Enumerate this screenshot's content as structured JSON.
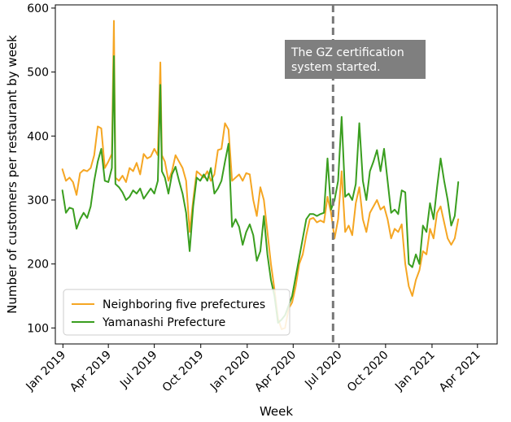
{
  "chart_data": {
    "type": "line",
    "xlabel": "Week",
    "ylabel": "Number of customers per restaurant by week",
    "ylim": [
      75,
      605
    ],
    "yticks": [
      100,
      200,
      300,
      400,
      500,
      600
    ],
    "xlim": [
      "2018-12-17",
      "2021-05-10"
    ],
    "xticks": [
      {
        "date": "2019-01-01",
        "label": "Jan 2019"
      },
      {
        "date": "2019-04-01",
        "label": "Apr 2019"
      },
      {
        "date": "2019-07-01",
        "label": "Jul 2019"
      },
      {
        "date": "2019-10-01",
        "label": "Oct 2019"
      },
      {
        "date": "2020-01-01",
        "label": "Jan 2020"
      },
      {
        "date": "2020-04-01",
        "label": "Apr 2020"
      },
      {
        "date": "2020-07-01",
        "label": "Jul 2020"
      },
      {
        "date": "2020-10-01",
        "label": "Oct 2020"
      },
      {
        "date": "2021-01-01",
        "label": "Jan 2021"
      },
      {
        "date": "2021-04-01",
        "label": "Apr 2021"
      }
    ],
    "grid": false,
    "legend_position": "lower-left",
    "series": [
      {
        "name": "Neighboring five prefectures",
        "color": "#f5a623",
        "points": [
          [
            "2018-12-31",
            348
          ],
          [
            "2019-01-07",
            330
          ],
          [
            "2019-01-14",
            335
          ],
          [
            "2019-01-21",
            328
          ],
          [
            "2019-01-28",
            308
          ],
          [
            "2019-02-04",
            342
          ],
          [
            "2019-02-11",
            347
          ],
          [
            "2019-02-18",
            345
          ],
          [
            "2019-02-25",
            350
          ],
          [
            "2019-03-04",
            370
          ],
          [
            "2019-03-11",
            415
          ],
          [
            "2019-03-18",
            412
          ],
          [
            "2019-03-25",
            350
          ],
          [
            "2019-04-01",
            360
          ],
          [
            "2019-04-08",
            372
          ],
          [
            "2019-04-12",
            580
          ],
          [
            "2019-04-15",
            335
          ],
          [
            "2019-04-22",
            330
          ],
          [
            "2019-04-29",
            338
          ],
          [
            "2019-05-06",
            328
          ],
          [
            "2019-05-13",
            350
          ],
          [
            "2019-05-20",
            345
          ],
          [
            "2019-05-27",
            358
          ],
          [
            "2019-06-03",
            340
          ],
          [
            "2019-06-10",
            372
          ],
          [
            "2019-06-17",
            365
          ],
          [
            "2019-06-24",
            368
          ],
          [
            "2019-07-01",
            380
          ],
          [
            "2019-07-08",
            370
          ],
          [
            "2019-07-13",
            515
          ],
          [
            "2019-07-16",
            370
          ],
          [
            "2019-07-22",
            360
          ],
          [
            "2019-07-29",
            330
          ],
          [
            "2019-08-05",
            345
          ],
          [
            "2019-08-12",
            370
          ],
          [
            "2019-08-19",
            360
          ],
          [
            "2019-08-26",
            350
          ],
          [
            "2019-09-02",
            330
          ],
          [
            "2019-09-09",
            250
          ],
          [
            "2019-09-16",
            300
          ],
          [
            "2019-09-23",
            345
          ],
          [
            "2019-09-30",
            340
          ],
          [
            "2019-10-07",
            335
          ],
          [
            "2019-10-14",
            345
          ],
          [
            "2019-10-21",
            330
          ],
          [
            "2019-10-28",
            340
          ],
          [
            "2019-11-04",
            378
          ],
          [
            "2019-11-11",
            380
          ],
          [
            "2019-11-18",
            420
          ],
          [
            "2019-11-25",
            410
          ],
          [
            "2019-12-02",
            330
          ],
          [
            "2019-12-09",
            335
          ],
          [
            "2019-12-16",
            340
          ],
          [
            "2019-12-23",
            330
          ],
          [
            "2019-12-30",
            342
          ],
          [
            "2020-01-06",
            340
          ],
          [
            "2020-01-13",
            300
          ],
          [
            "2020-01-20",
            275
          ],
          [
            "2020-01-27",
            320
          ],
          [
            "2020-02-03",
            300
          ],
          [
            "2020-02-10",
            250
          ],
          [
            "2020-02-17",
            200
          ],
          [
            "2020-02-24",
            160
          ],
          [
            "2020-03-02",
            115
          ],
          [
            "2020-03-09",
            98
          ],
          [
            "2020-03-16",
            100
          ],
          [
            "2020-03-23",
            130
          ],
          [
            "2020-03-30",
            140
          ],
          [
            "2020-04-06",
            165
          ],
          [
            "2020-04-13",
            200
          ],
          [
            "2020-04-20",
            215
          ],
          [
            "2020-04-27",
            245
          ],
          [
            "2020-05-04",
            270
          ],
          [
            "2020-05-11",
            272
          ],
          [
            "2020-05-18",
            265
          ],
          [
            "2020-05-25",
            268
          ],
          [
            "2020-06-01",
            265
          ],
          [
            "2020-06-08",
            305
          ],
          [
            "2020-06-15",
            280
          ],
          [
            "2020-06-22",
            240
          ],
          [
            "2020-06-29",
            270
          ],
          [
            "2020-07-06",
            345
          ],
          [
            "2020-07-13",
            250
          ],
          [
            "2020-07-20",
            260
          ],
          [
            "2020-07-27",
            245
          ],
          [
            "2020-08-03",
            295
          ],
          [
            "2020-08-10",
            320
          ],
          [
            "2020-08-17",
            270
          ],
          [
            "2020-08-24",
            250
          ],
          [
            "2020-08-31",
            280
          ],
          [
            "2020-09-07",
            290
          ],
          [
            "2020-09-14",
            300
          ],
          [
            "2020-09-21",
            285
          ],
          [
            "2020-09-28",
            290
          ],
          [
            "2020-10-05",
            270
          ],
          [
            "2020-10-12",
            240
          ],
          [
            "2020-10-19",
            255
          ],
          [
            "2020-10-26",
            250
          ],
          [
            "2020-11-02",
            262
          ],
          [
            "2020-11-09",
            200
          ],
          [
            "2020-11-16",
            165
          ],
          [
            "2020-11-23",
            150
          ],
          [
            "2020-11-30",
            175
          ],
          [
            "2020-12-07",
            190
          ],
          [
            "2020-12-14",
            220
          ],
          [
            "2020-12-21",
            215
          ],
          [
            "2020-12-28",
            255
          ],
          [
            "2021-01-04",
            240
          ],
          [
            "2021-01-11",
            280
          ],
          [
            "2021-01-18",
            290
          ],
          [
            "2021-01-25",
            265
          ],
          [
            "2021-02-01",
            240
          ],
          [
            "2021-02-08",
            230
          ],
          [
            "2021-02-15",
            240
          ],
          [
            "2021-02-22",
            270
          ]
        ]
      },
      {
        "name": "Yamanashi Prefecture",
        "color": "#3a9e1f",
        "points": [
          [
            "2018-12-31",
            315
          ],
          [
            "2019-01-07",
            280
          ],
          [
            "2019-01-14",
            288
          ],
          [
            "2019-01-21",
            286
          ],
          [
            "2019-01-28",
            255
          ],
          [
            "2019-02-04",
            270
          ],
          [
            "2019-02-11",
            280
          ],
          [
            "2019-02-18",
            272
          ],
          [
            "2019-02-25",
            290
          ],
          [
            "2019-03-04",
            330
          ],
          [
            "2019-03-11",
            360
          ],
          [
            "2019-03-18",
            380
          ],
          [
            "2019-03-25",
            330
          ],
          [
            "2019-04-01",
            328
          ],
          [
            "2019-04-08",
            350
          ],
          [
            "2019-04-12",
            525
          ],
          [
            "2019-04-15",
            325
          ],
          [
            "2019-04-22",
            320
          ],
          [
            "2019-04-29",
            312
          ],
          [
            "2019-05-06",
            300
          ],
          [
            "2019-05-13",
            305
          ],
          [
            "2019-05-20",
            315
          ],
          [
            "2019-05-27",
            310
          ],
          [
            "2019-06-03",
            318
          ],
          [
            "2019-06-10",
            302
          ],
          [
            "2019-06-17",
            310
          ],
          [
            "2019-06-24",
            318
          ],
          [
            "2019-07-01",
            310
          ],
          [
            "2019-07-08",
            330
          ],
          [
            "2019-07-13",
            480
          ],
          [
            "2019-07-16",
            345
          ],
          [
            "2019-07-22",
            335
          ],
          [
            "2019-07-29",
            310
          ],
          [
            "2019-08-05",
            340
          ],
          [
            "2019-08-12",
            352
          ],
          [
            "2019-08-19",
            330
          ],
          [
            "2019-08-26",
            310
          ],
          [
            "2019-09-02",
            280
          ],
          [
            "2019-09-09",
            220
          ],
          [
            "2019-09-16",
            290
          ],
          [
            "2019-09-23",
            335
          ],
          [
            "2019-09-30",
            330
          ],
          [
            "2019-10-07",
            340
          ],
          [
            "2019-10-14",
            330
          ],
          [
            "2019-10-21",
            350
          ],
          [
            "2019-10-28",
            310
          ],
          [
            "2019-11-04",
            318
          ],
          [
            "2019-11-11",
            330
          ],
          [
            "2019-11-18",
            360
          ],
          [
            "2019-11-25",
            388
          ],
          [
            "2019-12-02",
            258
          ],
          [
            "2019-12-09",
            270
          ],
          [
            "2019-12-16",
            258
          ],
          [
            "2019-12-23",
            230
          ],
          [
            "2019-12-30",
            250
          ],
          [
            "2020-01-06",
            262
          ],
          [
            "2020-01-13",
            245
          ],
          [
            "2020-01-20",
            205
          ],
          [
            "2020-01-27",
            220
          ],
          [
            "2020-02-03",
            275
          ],
          [
            "2020-02-10",
            215
          ],
          [
            "2020-02-17",
            175
          ],
          [
            "2020-02-24",
            150
          ],
          [
            "2020-03-02",
            108
          ],
          [
            "2020-03-09",
            113
          ],
          [
            "2020-03-16",
            120
          ],
          [
            "2020-03-23",
            135
          ],
          [
            "2020-03-30",
            150
          ],
          [
            "2020-04-06",
            180
          ],
          [
            "2020-04-13",
            210
          ],
          [
            "2020-04-20",
            240
          ],
          [
            "2020-04-27",
            270
          ],
          [
            "2020-05-04",
            278
          ],
          [
            "2020-05-11",
            278
          ],
          [
            "2020-05-18",
            275
          ],
          [
            "2020-05-25",
            278
          ],
          [
            "2020-06-01",
            280
          ],
          [
            "2020-06-08",
            365
          ],
          [
            "2020-06-15",
            285
          ],
          [
            "2020-06-22",
            300
          ],
          [
            "2020-06-29",
            330
          ],
          [
            "2020-07-06",
            430
          ],
          [
            "2020-07-13",
            305
          ],
          [
            "2020-07-20",
            310
          ],
          [
            "2020-07-27",
            300
          ],
          [
            "2020-08-03",
            325
          ],
          [
            "2020-08-10",
            420
          ],
          [
            "2020-08-17",
            330
          ],
          [
            "2020-08-24",
            300
          ],
          [
            "2020-08-31",
            345
          ],
          [
            "2020-09-07",
            360
          ],
          [
            "2020-09-14",
            378
          ],
          [
            "2020-09-21",
            345
          ],
          [
            "2020-09-28",
            380
          ],
          [
            "2020-10-05",
            330
          ],
          [
            "2020-10-12",
            280
          ],
          [
            "2020-10-19",
            285
          ],
          [
            "2020-10-26",
            278
          ],
          [
            "2020-11-02",
            315
          ],
          [
            "2020-11-09",
            312
          ],
          [
            "2020-11-16",
            200
          ],
          [
            "2020-11-23",
            195
          ],
          [
            "2020-11-30",
            215
          ],
          [
            "2020-12-07",
            200
          ],
          [
            "2020-12-14",
            260
          ],
          [
            "2020-12-21",
            250
          ],
          [
            "2020-12-28",
            295
          ],
          [
            "2021-01-04",
            270
          ],
          [
            "2021-01-11",
            320
          ],
          [
            "2021-01-18",
            365
          ],
          [
            "2021-01-25",
            330
          ],
          [
            "2021-02-01",
            300
          ],
          [
            "2021-02-08",
            260
          ],
          [
            "2021-02-15",
            275
          ],
          [
            "2021-02-22",
            328
          ]
        ]
      }
    ],
    "reference_line": {
      "date": "2020-06-19",
      "color": "#777777",
      "style": "dashed"
    },
    "annotation": {
      "lines": [
        "The GZ certification",
        " system started."
      ],
      "background": "#7f7f7f"
    }
  }
}
